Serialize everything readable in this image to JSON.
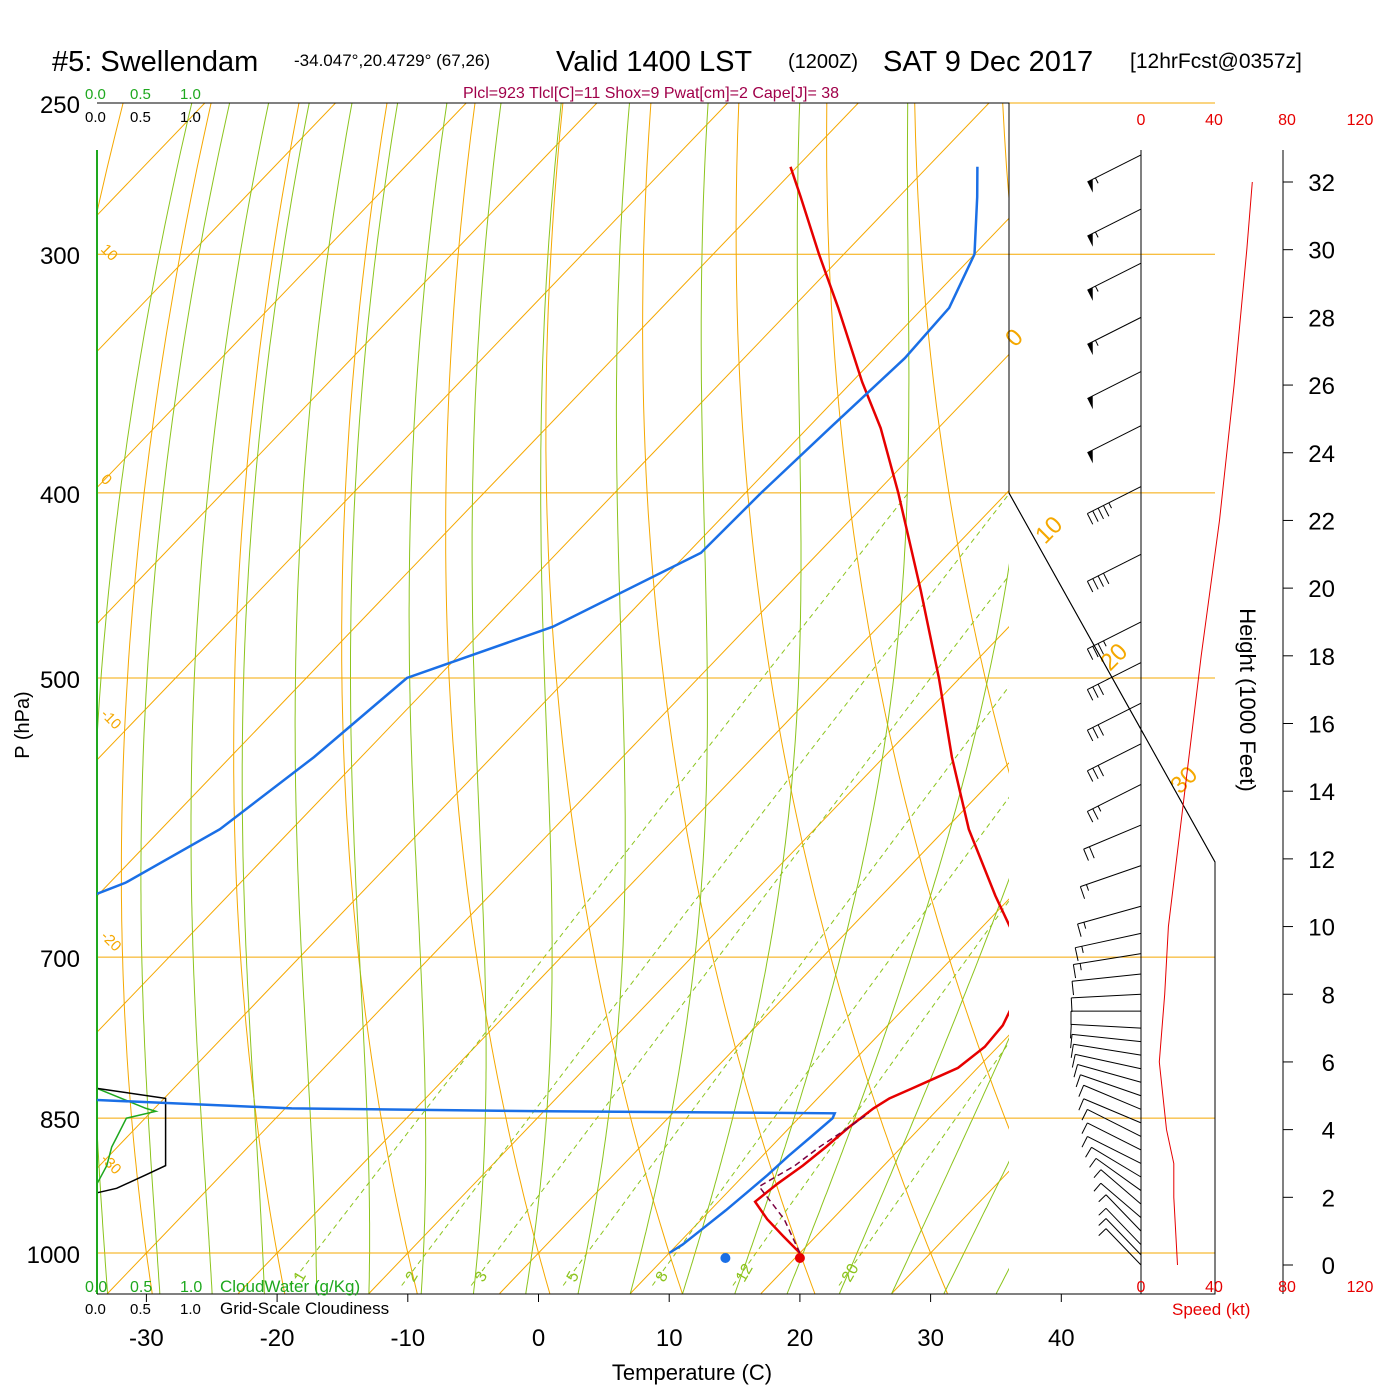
{
  "title": {
    "station": "#5: Swellendam",
    "coords": "-34.047°,20.4729° (67,26)",
    "valid": "Valid 1400 LST",
    "utc": "(1200Z)",
    "date": "SAT 9 Dec 2017",
    "forecast": "[12hrFcst@0357z]"
  },
  "indices": "Plcl=923 Tlcl[C]=11 Shox=9 Pwat[cm]=2 Cape[J]= 38",
  "colors": {
    "isotherm": "#f5a800",
    "dry_adiabat": "#f5a800",
    "moist_adiabat": "#8cc41e",
    "mixing_ratio": "#8cc41e",
    "temperature": "#e60000",
    "dewpoint": "#1a6fe6",
    "parcel": "#7a0040",
    "cloud_water": "#1ea81e",
    "title_indices": "#a0004a",
    "speed": "#e60000"
  },
  "chart_data": {
    "type": "line",
    "subtype": "skew-T log-P sounding",
    "xlabel": "Temperature (C)",
    "ylabel": "P (hPa)",
    "y2label": "Height (1000 Feet)",
    "x_ticks": [
      "-30",
      "-20",
      "-10",
      "0",
      "10",
      "20",
      "30",
      "40"
    ],
    "x_tick_values": [
      -30,
      -20,
      -10,
      0,
      10,
      20,
      30,
      40
    ],
    "p_ticks": [
      "250",
      "300",
      "400",
      "500",
      "700",
      "850",
      "1000"
    ],
    "p_tick_values": [
      250,
      300,
      400,
      500,
      700,
      850,
      1000
    ],
    "height_ticks": [
      "0",
      "2",
      "4",
      "6",
      "8",
      "10",
      "12",
      "14",
      "16",
      "18",
      "20",
      "22",
      "24",
      "26",
      "28",
      "30",
      "32"
    ],
    "height_tick_values": [
      0,
      2,
      4,
      6,
      8,
      10,
      12,
      14,
      16,
      18,
      20,
      22,
      24,
      26,
      28,
      30,
      32
    ],
    "dry_adiabat_labels": [
      "10",
      "0",
      "-10",
      "-20",
      "-30"
    ],
    "dry_adiabat_values": [
      10,
      0,
      -10,
      -20,
      -30
    ],
    "isotherm_labels": [
      "0",
      "10",
      "20",
      "30"
    ],
    "isotherm_values": [
      0,
      10,
      20,
      30
    ],
    "mixing_ratio_labels": [
      "1",
      "2",
      "3",
      "5",
      "8",
      "12",
      "20"
    ],
    "mixing_ratio_values": [
      1,
      2,
      3,
      5,
      8,
      12,
      20
    ],
    "series": [
      {
        "name": "Temperature",
        "points": [
          [
            1000,
            20.0
          ],
          [
            980,
            17.5
          ],
          [
            960,
            15.0
          ],
          [
            940,
            12.8
          ],
          [
            920,
            13.2
          ],
          [
            900,
            13.8
          ],
          [
            880,
            14.2
          ],
          [
            860,
            14.5
          ],
          [
            840,
            15.0
          ],
          [
            830,
            15.5
          ],
          [
            820,
            16.5
          ],
          [
            810,
            17.5
          ],
          [
            800,
            18.5
          ],
          [
            780,
            19.0
          ],
          [
            760,
            18.8
          ],
          [
            740,
            18.0
          ],
          [
            720,
            16.8
          ],
          [
            700,
            15.0
          ],
          [
            680,
            12.8
          ],
          [
            650,
            8.7
          ],
          [
            600,
            1.8
          ],
          [
            550,
            -4.8
          ],
          [
            500,
            -11.6
          ],
          [
            450,
            -19.4
          ],
          [
            400,
            -28.3
          ],
          [
            370,
            -34.4
          ],
          [
            350,
            -39.2
          ],
          [
            320,
            -46.5
          ],
          [
            300,
            -51.9
          ],
          [
            280,
            -57.5
          ],
          [
            270,
            -60.5
          ]
        ]
      },
      {
        "name": "Dewpoint",
        "points": [
          [
            1000,
            10.0
          ],
          [
            990,
            10.4
          ],
          [
            970,
            10.8
          ],
          [
            950,
            11.2
          ],
          [
            930,
            11.5
          ],
          [
            910,
            11.8
          ],
          [
            890,
            12.0
          ],
          [
            870,
            12.3
          ],
          [
            850,
            12.6
          ],
          [
            845,
            12.4
          ],
          [
            843,
            -9.8
          ],
          [
            840,
            -29.5
          ],
          [
            830,
            -48.0
          ],
          [
            800,
            -65.5
          ],
          [
            780,
            -71.8
          ],
          [
            760,
            -75.5
          ],
          [
            740,
            -77.9
          ],
          [
            720,
            -77.5
          ],
          [
            700,
            -72.4
          ],
          [
            670,
            -63.5
          ],
          [
            640,
            -58.8
          ],
          [
            600,
            -55.5
          ],
          [
            550,
            -53.6
          ],
          [
            500,
            -52.3
          ],
          [
            470,
            -44.9
          ],
          [
            430,
            -39.0
          ],
          [
            400,
            -38.8
          ],
          [
            370,
            -38.3
          ],
          [
            340,
            -37.7
          ],
          [
            320,
            -38.0
          ],
          [
            300,
            -40.0
          ],
          [
            280,
            -44.0
          ],
          [
            270,
            -46.2
          ]
        ]
      },
      {
        "name": "Parcel",
        "points": [
          [
            1000,
            20.0
          ],
          [
            960,
            16.3
          ],
          [
            923,
            12.0
          ],
          [
            900,
            13.2
          ],
          [
            880,
            13.7
          ],
          [
            860,
            14.5
          ],
          [
            845,
            15.0
          ]
        ]
      },
      {
        "name": "Cloud Water (g/Kg)",
        "points": [
          [
            820,
            0.0
          ],
          [
            840,
            0.5
          ],
          [
            843,
            0.6
          ],
          [
            850,
            0.3
          ],
          [
            870,
            0.2
          ],
          [
            880,
            0.15
          ],
          [
            900,
            0.1
          ],
          [
            920,
            0.0
          ]
        ]
      },
      {
        "name": "Grid-Scale Cloudiness",
        "points": [
          [
            820,
            0.0
          ],
          [
            830,
            0.7
          ],
          [
            900,
            0.7
          ],
          [
            910,
            0.5
          ],
          [
            925,
            0.2
          ],
          [
            930,
            0.0
          ]
        ]
      },
      {
        "name": "Speed (kt)",
        "points": [
          [
            0,
            20
          ],
          [
            2,
            18
          ],
          [
            3,
            18
          ],
          [
            4,
            14
          ],
          [
            5,
            12
          ],
          [
            6,
            10
          ],
          [
            8,
            13
          ],
          [
            10,
            15
          ],
          [
            14,
            24
          ],
          [
            18,
            33
          ],
          [
            22,
            43
          ],
          [
            26,
            51
          ],
          [
            30,
            58
          ],
          [
            32,
            61
          ]
        ]
      }
    ],
    "wind_barbs": [
      {
        "height": 0.0,
        "dir": 30,
        "speed": 10
      },
      {
        "height": 0.3,
        "dir": 30,
        "speed": 10
      },
      {
        "height": 0.6,
        "dir": 30,
        "speed": 10
      },
      {
        "height": 1.0,
        "dir": 30,
        "speed": 10
      },
      {
        "height": 1.4,
        "dir": 35,
        "speed": 10
      },
      {
        "height": 1.8,
        "dir": 35,
        "speed": 10
      },
      {
        "height": 2.2,
        "dir": 40,
        "speed": 10
      },
      {
        "height": 2.6,
        "dir": 45,
        "speed": 10
      },
      {
        "height": 3.0,
        "dir": 50,
        "speed": 10
      },
      {
        "height": 3.4,
        "dir": 50,
        "speed": 10
      },
      {
        "height": 3.8,
        "dir": 50,
        "speed": 10
      },
      {
        "height": 4.2,
        "dir": 55,
        "speed": 10
      },
      {
        "height": 4.6,
        "dir": 55,
        "speed": 10
      },
      {
        "height": 5.0,
        "dir": 60,
        "speed": 10
      },
      {
        "height": 5.4,
        "dir": 65,
        "speed": 10
      },
      {
        "height": 5.8,
        "dir": 70,
        "speed": 10
      },
      {
        "height": 6.2,
        "dir": 75,
        "speed": 10
      },
      {
        "height": 6.6,
        "dir": 80,
        "speed": 10
      },
      {
        "height": 7.0,
        "dir": 85,
        "speed": 10
      },
      {
        "height": 7.5,
        "dir": 90,
        "speed": 10
      },
      {
        "height": 8.0,
        "dir": 95,
        "speed": 10
      },
      {
        "height": 8.6,
        "dir": 100,
        "speed": 10
      },
      {
        "height": 9.2,
        "dir": 105,
        "speed": 15
      },
      {
        "height": 9.8,
        "dir": 110,
        "speed": 15
      },
      {
        "height": 10.6,
        "dir": 115,
        "speed": 15
      },
      {
        "height": 11.8,
        "dir": 120,
        "speed": 15
      },
      {
        "height": 13.0,
        "dir": 125,
        "speed": 20
      },
      {
        "height": 14.2,
        "dir": 130,
        "speed": 25
      },
      {
        "height": 15.4,
        "dir": 130,
        "speed": 30
      },
      {
        "height": 16.6,
        "dir": 130,
        "speed": 30
      },
      {
        "height": 17.8,
        "dir": 130,
        "speed": 30
      },
      {
        "height": 19.0,
        "dir": 130,
        "speed": 35
      },
      {
        "height": 21.0,
        "dir": 130,
        "speed": 40
      },
      {
        "height": 23.0,
        "dir": 130,
        "speed": 45
      },
      {
        "height": 24.8,
        "dir": 130,
        "speed": 50
      },
      {
        "height": 26.4,
        "dir": 130,
        "speed": 50
      },
      {
        "height": 28.0,
        "dir": 130,
        "speed": 55
      },
      {
        "height": 29.6,
        "dir": 130,
        "speed": 55
      },
      {
        "height": 31.2,
        "dir": 130,
        "speed": 55
      },
      {
        "height": 32.8,
        "dir": 130,
        "speed": 55
      }
    ],
    "speed_ticks": [
      "0",
      "40",
      "80",
      "120"
    ],
    "speed_tick_values": [
      0,
      40,
      80,
      120
    ],
    "speed_label": "Speed (kt)",
    "cloud_water_label": "CloudWater (g/Kg)",
    "cloudiness_label": "Grid-Scale Cloudiness",
    "cloud_ticks": [
      "0.0",
      "0.5",
      "1.0"
    ],
    "cloud_tick_values": [
      0.0,
      0.5,
      1.0
    ]
  }
}
